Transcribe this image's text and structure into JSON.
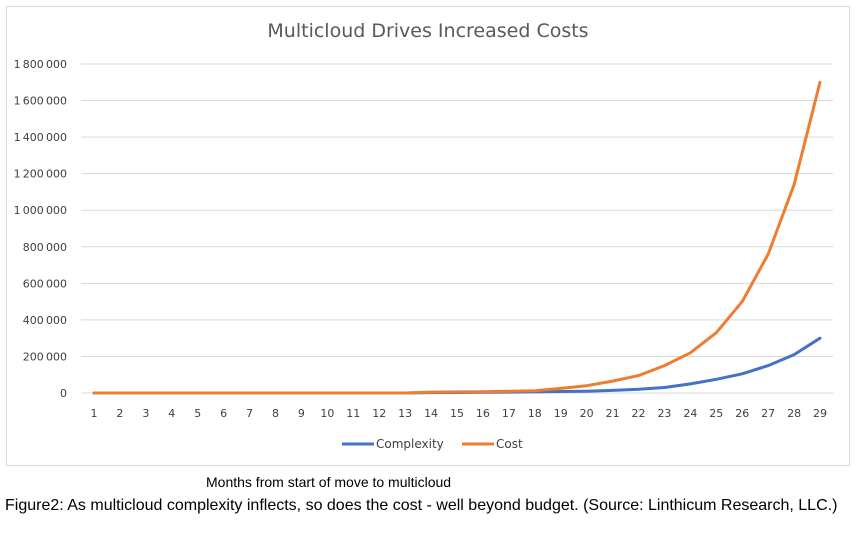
{
  "chart_data": {
    "type": "line",
    "title": "Multicloud Drives Increased Costs",
    "xlabel": "Months from start of move to multicloud",
    "ylabel": "",
    "categories": [
      "1",
      "2",
      "3",
      "4",
      "5",
      "6",
      "7",
      "8",
      "9",
      "10",
      "11",
      "12",
      "13",
      "14",
      "15",
      "16",
      "17",
      "18",
      "19",
      "20",
      "21",
      "22",
      "23",
      "24",
      "25",
      "26",
      "27",
      "28",
      "29"
    ],
    "y_tick_labels": [
      "0",
      "200000",
      "400000",
      "600000",
      "800000",
      "1000000",
      "1200000",
      "1400000",
      "1600000",
      "1800000"
    ],
    "ylim": [
      0,
      1800000
    ],
    "grid": true,
    "legend_position": "bottom",
    "series": [
      {
        "name": "Complexity",
        "color": "#4472c4",
        "values": [
          0,
          0,
          0,
          0,
          0,
          0,
          0,
          0,
          0,
          0,
          0,
          0,
          0,
          2000,
          3000,
          4000,
          5000,
          6000,
          8000,
          10000,
          14000,
          20000,
          30000,
          50000,
          75000,
          105000,
          150000,
          210000,
          300000
        ]
      },
      {
        "name": "Cost",
        "color": "#ed7d31",
        "values": [
          0,
          0,
          0,
          0,
          0,
          0,
          0,
          0,
          0,
          0,
          0,
          0,
          0,
          5000,
          6000,
          7000,
          10000,
          12000,
          25000,
          40000,
          65000,
          95000,
          150000,
          220000,
          330000,
          500000,
          760000,
          1140000,
          1700000
        ]
      }
    ]
  },
  "caption": "Figure2:  As multicloud complexity inflects, so does the cost - well beyond budget. (Source: Linthicum Research, LLC.)"
}
